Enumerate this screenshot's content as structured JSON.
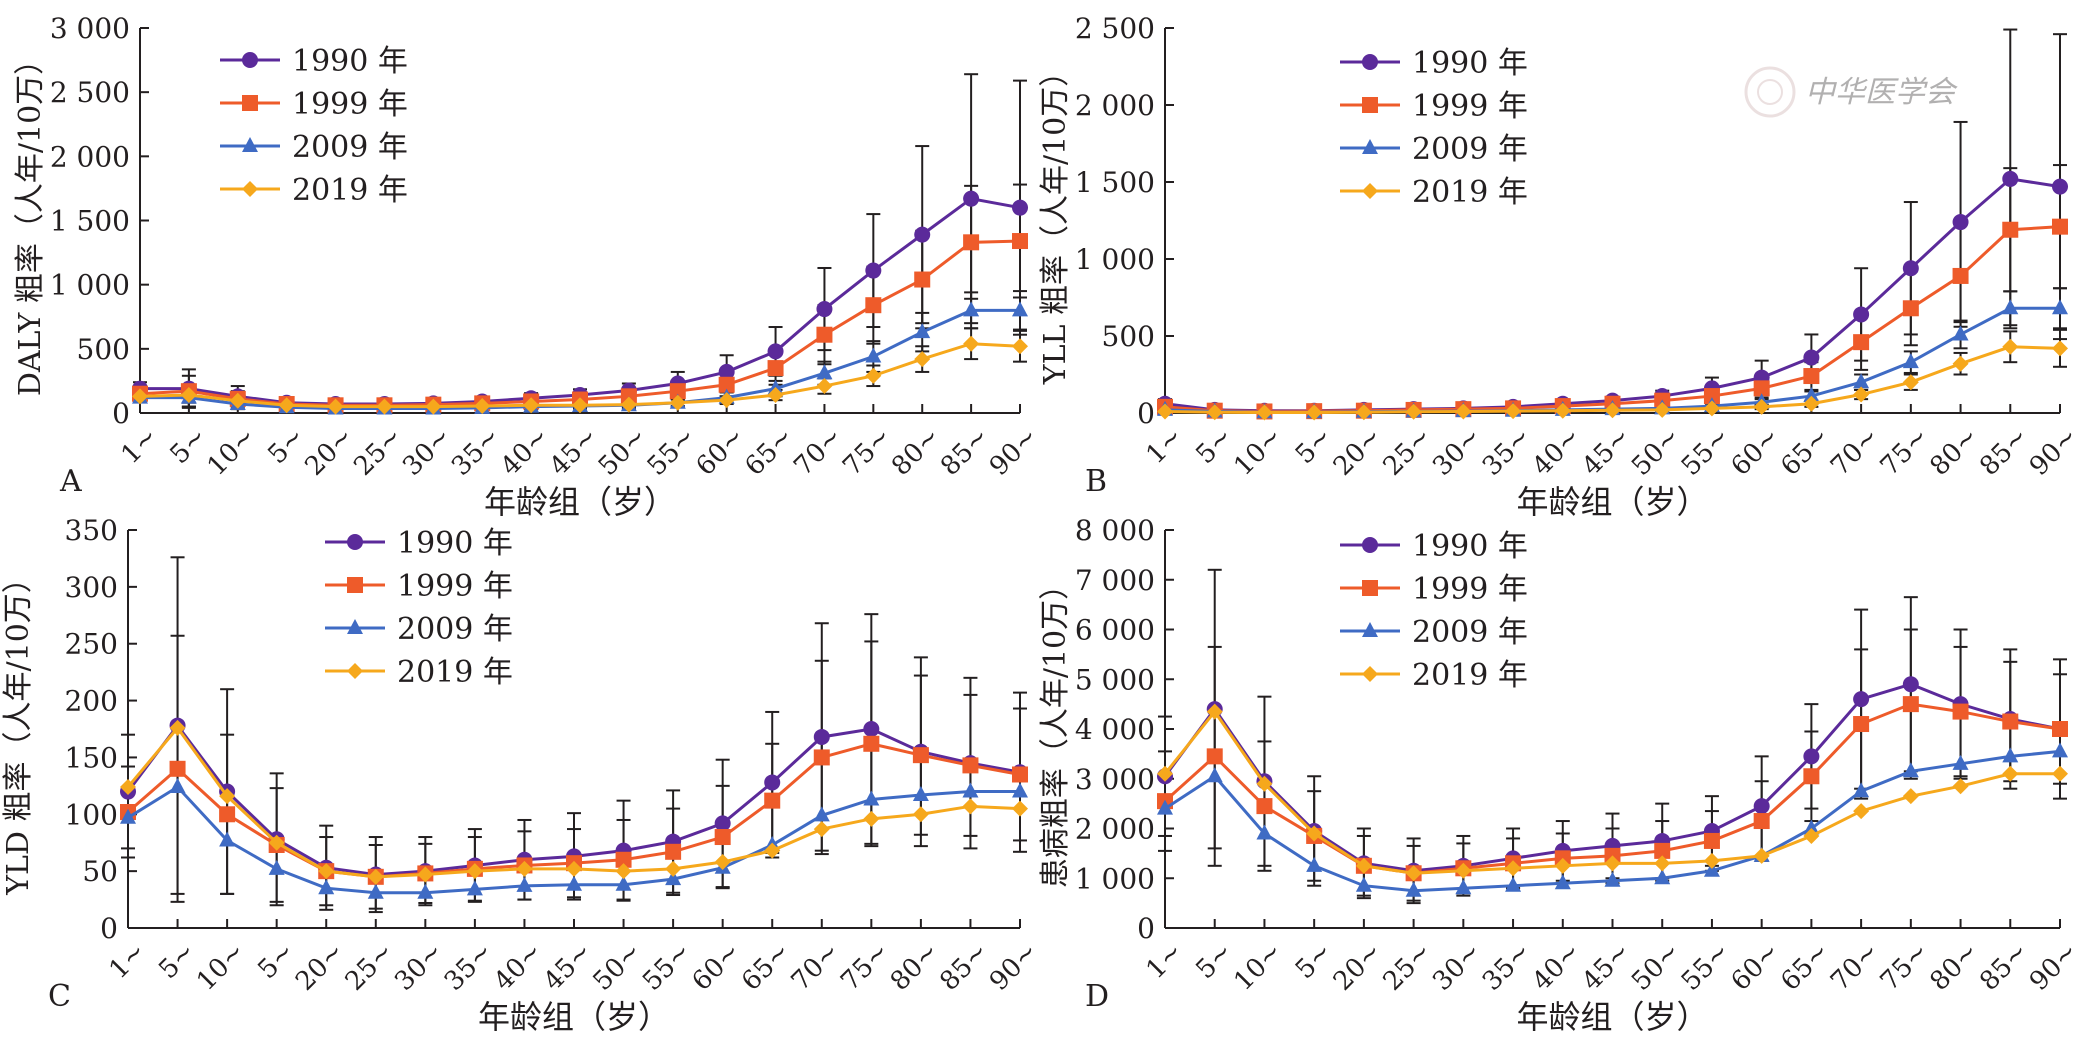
{
  "watermark": "中华医学会",
  "colors": {
    "1990": "#5b2a9a",
    "1999": "#ee5b2a",
    "2009": "#3f6bc4",
    "2019": "#f6a81c",
    "axis": "#231f20",
    "errorbar": "#231f20"
  },
  "chart_data": [
    {
      "panel": "A",
      "type": "line",
      "ylabel": "DALY 粗率（人年/10万）",
      "xlabel": "年龄组（岁）",
      "ylim": [
        0,
        3000
      ],
      "yticks": [
        0,
        500,
        1000,
        1500,
        2000,
        2500,
        3000
      ],
      "ytick_labels": [
        "0",
        "500",
        "1 000",
        "1 500",
        "2 000",
        "2 500",
        "3 000"
      ],
      "categories": [
        "1~",
        "5~",
        "10~",
        "5~",
        "20~",
        "25~",
        "30~",
        "35~",
        "40~",
        "45~",
        "50~",
        "55~",
        "60~",
        "65~",
        "70~",
        "75~",
        "80~",
        "85~",
        "90~"
      ],
      "legend": "top-left",
      "error_bars": true,
      "series": [
        {
          "name": "1990 年",
          "marker": "circle",
          "values": [
            190,
            190,
            130,
            80,
            70,
            70,
            75,
            90,
            115,
            140,
            175,
            230,
            320,
            480,
            810,
            1110,
            1390,
            1670,
            1600
          ],
          "err": [
            50,
            150,
            80,
            40,
            30,
            30,
            30,
            35,
            40,
            45,
            55,
            90,
            130,
            190,
            320,
            440,
            690,
            970,
            990
          ]
        },
        {
          "name": "1999 年",
          "marker": "square",
          "values": [
            150,
            170,
            110,
            70,
            60,
            60,
            65,
            75,
            90,
            105,
            130,
            170,
            220,
            350,
            610,
            840,
            1040,
            1330,
            1340
          ],
          "err": [
            40,
            120,
            60,
            30,
            25,
            25,
            25,
            30,
            35,
            40,
            45,
            60,
            90,
            130,
            230,
            300,
            380,
            440,
            440
          ]
        },
        {
          "name": "2009 年",
          "marker": "triangle",
          "values": [
            120,
            120,
            70,
            45,
            35,
            35,
            35,
            40,
            50,
            55,
            60,
            80,
            120,
            190,
            310,
            440,
            630,
            800,
            800
          ],
          "err": [
            30,
            70,
            40,
            20,
            15,
            15,
            15,
            15,
            20,
            20,
            25,
            30,
            40,
            60,
            90,
            120,
            150,
            140,
            150
          ]
        },
        {
          "name": "2019 年",
          "marker": "diamond",
          "values": [
            130,
            140,
            95,
            60,
            50,
            50,
            50,
            55,
            60,
            60,
            65,
            80,
            100,
            140,
            210,
            290,
            420,
            540,
            520
          ],
          "err": [
            30,
            60,
            35,
            20,
            15,
            15,
            15,
            15,
            15,
            15,
            20,
            25,
            30,
            40,
            60,
            80,
            100,
            120,
            120
          ]
        }
      ]
    },
    {
      "panel": "B",
      "type": "line",
      "ylabel": "YLL 粗率（人年/10万）",
      "xlabel": "年龄组（岁）",
      "ylim": [
        0,
        2500
      ],
      "yticks": [
        0,
        500,
        1000,
        1500,
        2000,
        2500
      ],
      "ytick_labels": [
        "0",
        "500",
        "1 000",
        "1 500",
        "2 000",
        "2 500"
      ],
      "categories": [
        "1~",
        "5~",
        "10~",
        "5~",
        "20~",
        "25~",
        "30~",
        "35~",
        "40~",
        "45~",
        "50~",
        "55~",
        "60~",
        "65~",
        "70~",
        "75~",
        "80~",
        "85~",
        "90~"
      ],
      "legend": "top-left",
      "error_bars": true,
      "series": [
        {
          "name": "1990 年",
          "marker": "circle",
          "values": [
            60,
            20,
            15,
            15,
            20,
            25,
            30,
            40,
            60,
            80,
            110,
            160,
            230,
            360,
            640,
            940,
            1240,
            1520,
            1470
          ],
          "err": [
            30,
            10,
            8,
            8,
            10,
            10,
            12,
            15,
            20,
            25,
            35,
            70,
            110,
            150,
            300,
            430,
            650,
            970,
            990
          ]
        },
        {
          "name": "1999 年",
          "marker": "square",
          "values": [
            40,
            15,
            10,
            12,
            15,
            20,
            25,
            30,
            45,
            60,
            80,
            110,
            160,
            240,
            460,
            680,
            890,
            1190,
            1210
          ],
          "err": [
            20,
            8,
            6,
            6,
            8,
            8,
            10,
            12,
            15,
            20,
            25,
            40,
            60,
            90,
            180,
            240,
            330,
            400,
            400
          ]
        },
        {
          "name": "2009 年",
          "marker": "triangle",
          "values": [
            20,
            10,
            5,
            5,
            8,
            10,
            12,
            15,
            20,
            25,
            30,
            45,
            70,
            110,
            200,
            330,
            510,
            680,
            680
          ],
          "err": [
            10,
            5,
            3,
            3,
            4,
            5,
            6,
            6,
            8,
            10,
            12,
            15,
            20,
            30,
            50,
            70,
            90,
            110,
            130
          ]
        },
        {
          "name": "2019 年",
          "marker": "diamond",
          "values": [
            10,
            5,
            3,
            3,
            5,
            8,
            10,
            12,
            15,
            18,
            20,
            30,
            40,
            60,
            120,
            200,
            320,
            430,
            420
          ],
          "err": [
            5,
            3,
            2,
            2,
            3,
            4,
            5,
            5,
            6,
            6,
            8,
            10,
            15,
            20,
            30,
            50,
            70,
            100,
            120
          ]
        }
      ]
    },
    {
      "panel": "C",
      "type": "line",
      "ylabel": "YLD 粗率（人年/10万）",
      "xlabel": "年龄组（岁）",
      "ylim": [
        0,
        350
      ],
      "yticks": [
        0,
        50,
        100,
        150,
        200,
        250,
        300,
        350
      ],
      "ytick_labels": [
        "0",
        "50",
        "100",
        "150",
        "200",
        "250",
        "300",
        "350"
      ],
      "categories": [
        "1~",
        "5~",
        "10~",
        "5~",
        "20~",
        "25~",
        "30~",
        "35~",
        "40~",
        "45~",
        "50~",
        "55~",
        "60~",
        "65~",
        "70~",
        "75~",
        "80~",
        "85~",
        "90~"
      ],
      "legend": "top-center",
      "error_bars": true,
      "series": [
        {
          "name": "1990 年",
          "marker": "circle",
          "values": [
            120,
            178,
            120,
            78,
            53,
            47,
            50,
            55,
            60,
            63,
            68,
            76,
            92,
            128,
            168,
            175,
            155,
            145,
            137
          ],
          "err": [
            50,
            148,
            90,
            58,
            37,
            33,
            30,
            32,
            35,
            38,
            44,
            45,
            56,
            62,
            100,
            101,
            83,
            75,
            70
          ]
        },
        {
          "name": "1999 年",
          "marker": "square",
          "values": [
            102,
            140,
            100,
            73,
            50,
            45,
            48,
            52,
            55,
            57,
            60,
            67,
            80,
            112,
            150,
            162,
            152,
            143,
            135
          ],
          "err": [
            40,
            117,
            70,
            50,
            30,
            28,
            26,
            28,
            30,
            30,
            35,
            38,
            45,
            50,
            85,
            90,
            70,
            62,
            58
          ]
        },
        {
          "name": "2009 年",
          "marker": "triangle",
          "values": [
            97,
            124,
            77,
            52,
            35,
            31,
            31,
            34,
            37,
            38,
            38,
            43,
            53,
            73,
            99,
            113,
            117,
            120,
            120
          ]
        },
        {
          "name": "2019 年",
          "marker": "diamond",
          "values": [
            124,
            176,
            116,
            75,
            50,
            45,
            47,
            50,
            52,
            52,
            50,
            52,
            58,
            68,
            87,
            96,
            100,
            107,
            105
          ]
        }
      ]
    },
    {
      "panel": "D",
      "type": "line",
      "ylabel": "患病粗率（人年/10万）",
      "xlabel": "年龄组（岁）",
      "ylim": [
        0,
        8000
      ],
      "yticks": [
        0,
        1000,
        2000,
        3000,
        4000,
        5000,
        6000,
        7000,
        8000
      ],
      "ytick_labels": [
        "0",
        "1 000",
        "2 000",
        "3 000",
        "4 000",
        "5 000",
        "6 000",
        "7 000",
        "8 000"
      ],
      "categories": [
        "1~",
        "5~",
        "10~",
        "5~",
        "20~",
        "25~",
        "30~",
        "35~",
        "40~",
        "45~",
        "50~",
        "55~",
        "60~",
        "65~",
        "70~",
        "75~",
        "80~",
        "85~",
        "90~"
      ],
      "legend": "top-center",
      "error_bars": true,
      "series": [
        {
          "name": "1990 年",
          "marker": "circle",
          "values": [
            3050,
            4400,
            2950,
            1950,
            1300,
            1150,
            1250,
            1400,
            1550,
            1650,
            1750,
            1950,
            2450,
            3450,
            4600,
            4900,
            4500,
            4200,
            4000
          ],
          "err": [
            1200,
            2800,
            1700,
            1100,
            700,
            650,
            600,
            600,
            600,
            650,
            750,
            700,
            1000,
            1050,
            1800,
            1750,
            1500,
            1400,
            1400
          ]
        },
        {
          "name": "1999 年",
          "marker": "square",
          "values": [
            2550,
            3450,
            2450,
            1850,
            1250,
            1100,
            1200,
            1300,
            1400,
            1450,
            1550,
            1750,
            2150,
            3050,
            4100,
            4500,
            4350,
            4150,
            4000
          ],
          "err": [
            1000,
            2200,
            1300,
            900,
            600,
            550,
            500,
            500,
            500,
            550,
            600,
            600,
            800,
            900,
            1500,
            1500,
            1300,
            1200,
            1100
          ]
        },
        {
          "name": "2009 年",
          "marker": "triangle",
          "values": [
            2400,
            3050,
            1900,
            1250,
            850,
            750,
            800,
            850,
            900,
            950,
            1000,
            1150,
            1450,
            2000,
            2750,
            3150,
            3300,
            3450,
            3550
          ]
        },
        {
          "name": "2019 年",
          "marker": "diamond",
          "values": [
            3100,
            4350,
            2900,
            1900,
            1250,
            1100,
            1150,
            1200,
            1250,
            1300,
            1300,
            1350,
            1450,
            1850,
            2350,
            2650,
            2850,
            3100,
            3100
          ]
        }
      ]
    }
  ]
}
